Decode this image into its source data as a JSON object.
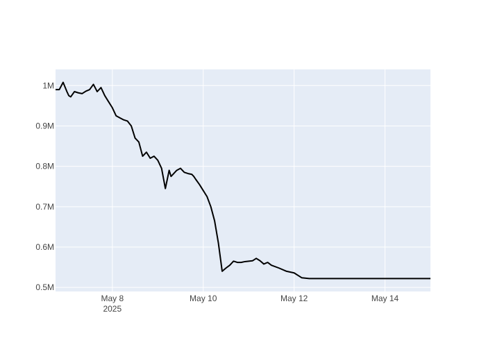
{
  "chart_data": {
    "type": "line",
    "title": "",
    "xlabel": "",
    "ylabel": "",
    "x_ticks": [
      {
        "date": "2025-05-08",
        "label": "May 8",
        "sublabel": "2025"
      },
      {
        "date": "2025-05-10",
        "label": "May 10",
        "sublabel": ""
      },
      {
        "date": "2025-05-12",
        "label": "May 12",
        "sublabel": ""
      },
      {
        "date": "2025-05-14",
        "label": "May 14",
        "sublabel": ""
      }
    ],
    "y_ticks": [
      {
        "value": 500000,
        "label": "0.5M"
      },
      {
        "value": 600000,
        "label": "0.6M"
      },
      {
        "value": 700000,
        "label": "0.7M"
      },
      {
        "value": 800000,
        "label": "0.8M"
      },
      {
        "value": 900000,
        "label": "0.9M"
      },
      {
        "value": 1000000,
        "label": "1M"
      }
    ],
    "xlim": [
      "2025-05-06T18:00",
      "2025-05-15T00:00"
    ],
    "ylim": [
      490000,
      1040000
    ],
    "grid": true,
    "legend": "none",
    "colors": {
      "plot_bg": "#e5ecf6",
      "grid": "#ffffff",
      "line": "#000000"
    },
    "series": [
      {
        "x": [
          "2025-05-06T18:00",
          "2025-05-06T20:00",
          "2025-05-06T22:00",
          "2025-05-07T00:00",
          "2025-05-07T01:00",
          "2025-05-07T02:00",
          "2025-05-07T04:00",
          "2025-05-07T06:00",
          "2025-05-07T08:00",
          "2025-05-07T10:00",
          "2025-05-07T12:00",
          "2025-05-07T14:00",
          "2025-05-07T16:00",
          "2025-05-07T18:00",
          "2025-05-07T20:00",
          "2025-05-07T22:00",
          "2025-05-08T00:00",
          "2025-05-08T02:00",
          "2025-05-08T04:00",
          "2025-05-08T06:00",
          "2025-05-08T08:00",
          "2025-05-08T10:00",
          "2025-05-08T12:00",
          "2025-05-08T14:00",
          "2025-05-08T16:00",
          "2025-05-08T18:00",
          "2025-05-08T20:00",
          "2025-05-08T22:00",
          "2025-05-09T00:00",
          "2025-05-09T02:00",
          "2025-05-09T04:00",
          "2025-05-09T06:00",
          "2025-05-09T07:00",
          "2025-05-09T08:00",
          "2025-05-09T10:00",
          "2025-05-09T12:00",
          "2025-05-09T14:00",
          "2025-05-09T16:00",
          "2025-05-09T18:00",
          "2025-05-09T19:00",
          "2025-05-09T20:00",
          "2025-05-09T22:00",
          "2025-05-10T00:00",
          "2025-05-10T02:00",
          "2025-05-10T04:00",
          "2025-05-10T06:00",
          "2025-05-10T08:00",
          "2025-05-10T10:00",
          "2025-05-10T12:00",
          "2025-05-10T14:00",
          "2025-05-10T16:00",
          "2025-05-10T18:00",
          "2025-05-10T20:00",
          "2025-05-10T22:00",
          "2025-05-11T00:00",
          "2025-05-11T02:00",
          "2025-05-11T04:00",
          "2025-05-11T06:00",
          "2025-05-11T08:00",
          "2025-05-11T10:00",
          "2025-05-11T12:00",
          "2025-05-11T16:00",
          "2025-05-11T20:00",
          "2025-05-12T00:00",
          "2025-05-12T04:00",
          "2025-05-12T08:00",
          "2025-05-12T12:00",
          "2025-05-12T16:00",
          "2025-05-12T18:00",
          "2025-05-12T20:00",
          "2025-05-13T00:00",
          "2025-05-13T04:00",
          "2025-05-13T08:00",
          "2025-05-13T12:00",
          "2025-05-13T16:00",
          "2025-05-13T20:00",
          "2025-05-14T00:00",
          "2025-05-14T04:00",
          "2025-05-14T08:00",
          "2025-05-14T12:00",
          "2025-05-14T16:00",
          "2025-05-14T20:00",
          "2025-05-15T00:00"
        ],
        "values": [
          990000,
          990000,
          1008000,
          985000,
          975000,
          972000,
          985000,
          982000,
          980000,
          986000,
          990000,
          1003000,
          985000,
          995000,
          975000,
          960000,
          945000,
          925000,
          920000,
          915000,
          912000,
          900000,
          870000,
          860000,
          825000,
          835000,
          820000,
          825000,
          815000,
          795000,
          745000,
          790000,
          775000,
          780000,
          790000,
          795000,
          785000,
          782000,
          780000,
          775000,
          768000,
          755000,
          740000,
          725000,
          700000,
          665000,
          610000,
          540000,
          548000,
          555000,
          565000,
          562000,
          562000,
          564000,
          565000,
          566000,
          572000,
          566000,
          558000,
          562000,
          555000,
          548000,
          540000,
          536000,
          524000,
          522000,
          522000,
          522000,
          522000,
          522000,
          522000,
          522000,
          522000,
          522000,
          522000,
          522000,
          522000,
          522000,
          522000,
          522000,
          522000,
          522000,
          522000
        ]
      }
    ]
  }
}
